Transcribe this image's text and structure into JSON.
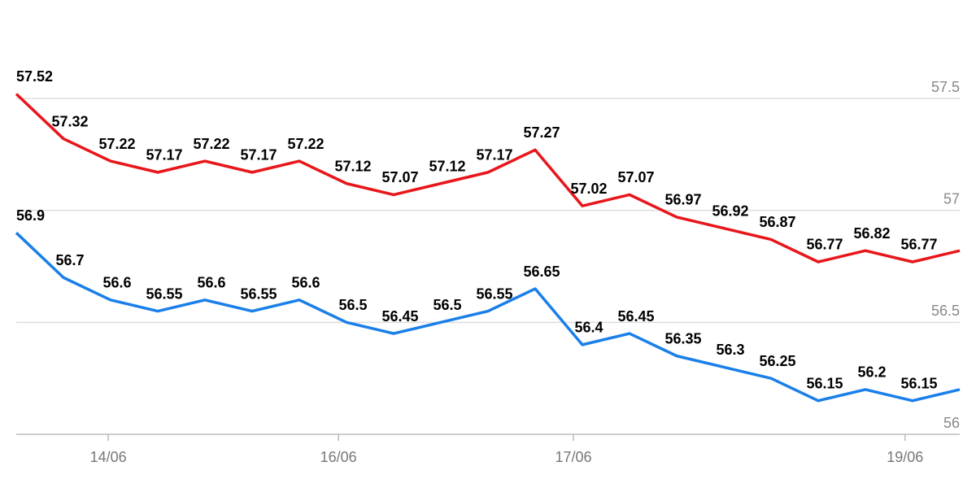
{
  "chart_data": {
    "type": "line",
    "x": [
      0,
      1,
      2,
      3,
      4,
      5,
      6,
      7,
      8,
      9,
      10,
      11,
      12,
      13,
      14,
      15,
      16,
      17,
      18,
      19,
      20
    ],
    "xlim": [
      0,
      20
    ],
    "xticks": [
      {
        "value": 1.95,
        "label": "14/06"
      },
      {
        "value": 6.83,
        "label": "16/06"
      },
      {
        "value": 11.81,
        "label": "17/06"
      },
      {
        "value": 18.84,
        "label": "19/06"
      }
    ],
    "ylim": [
      56,
      57.5
    ],
    "yticks": [
      56,
      56.5,
      57,
      57.5
    ],
    "grid": true,
    "series": [
      {
        "color": "#e8161b",
        "values": [
          57.52,
          57.32,
          57.22,
          57.17,
          57.22,
          57.17,
          57.22,
          57.12,
          57.07,
          57.12,
          57.17,
          57.27,
          57.02,
          57.07,
          56.97,
          56.92,
          56.87,
          56.77,
          56.82,
          56.77,
          56.82
        ],
        "value_labels": [
          "57.52",
          "57.32",
          "57.22",
          "57.17",
          "57.22",
          "57.17",
          "57.22",
          "57.12",
          "57.07",
          "57.12",
          "57.17",
          "57.27",
          "57.02",
          "57.07",
          "56.97",
          "56.92",
          "56.87",
          "56.77",
          "56.82",
          "56.77",
          null
        ]
      },
      {
        "color": "#1a7fe8",
        "values": [
          56.9,
          56.7,
          56.6,
          56.55,
          56.6,
          56.55,
          56.6,
          56.5,
          56.45,
          56.5,
          56.55,
          56.65,
          56.4,
          56.45,
          56.35,
          56.3,
          56.25,
          56.15,
          56.2,
          56.15,
          56.2
        ],
        "value_labels": [
          "56.9",
          "56.7",
          "56.6",
          "56.55",
          "56.6",
          "56.55",
          "56.6",
          "56.5",
          "56.45",
          "56.5",
          "56.55",
          "56.65",
          "56.4",
          "56.45",
          "56.35",
          "56.3",
          "56.25",
          "56.15",
          "56.2",
          "56.15",
          null
        ]
      }
    ]
  }
}
